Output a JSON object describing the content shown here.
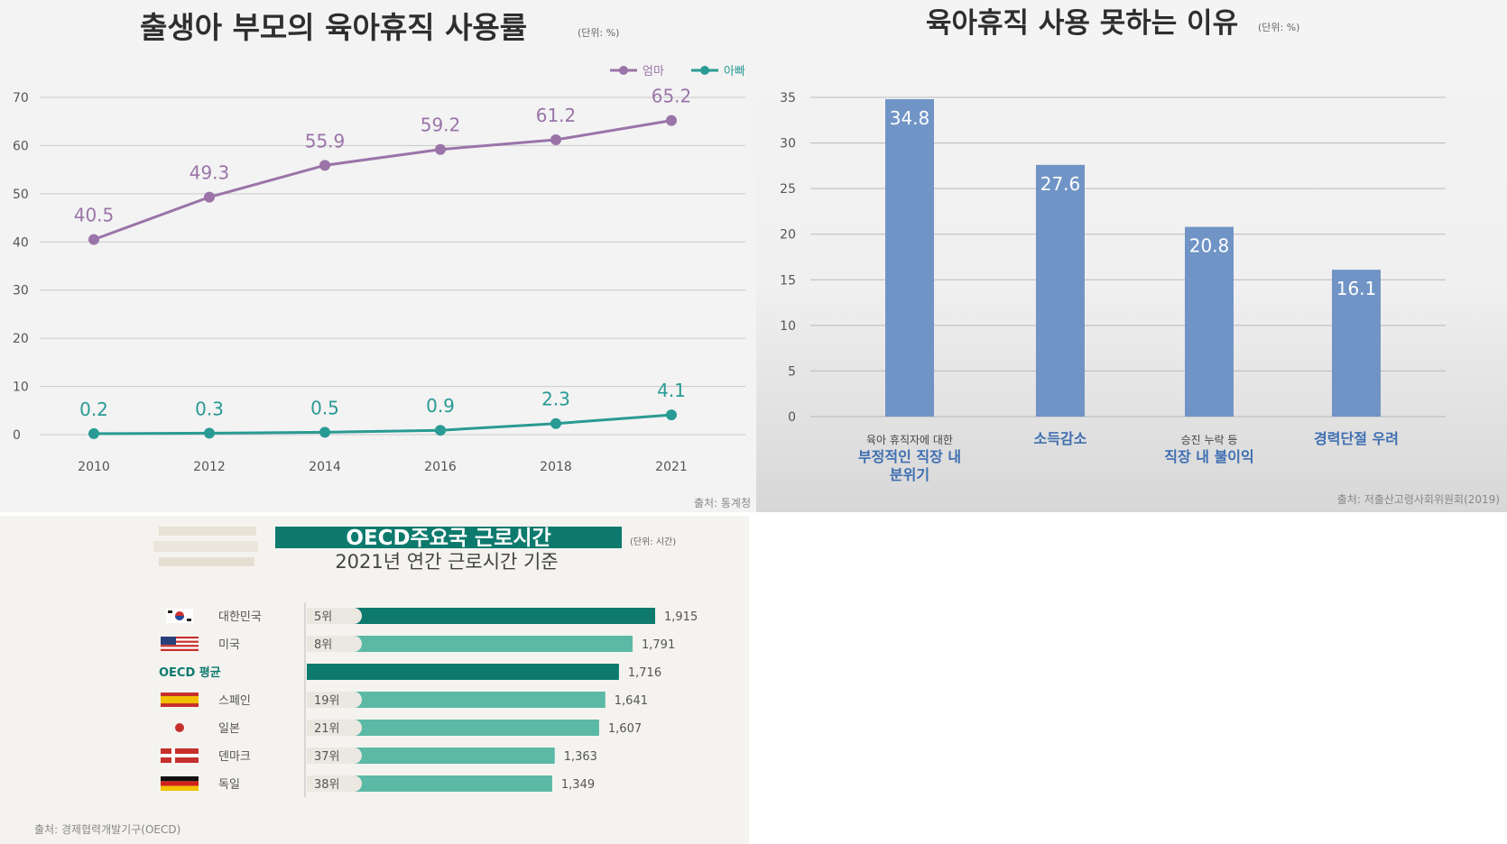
{
  "charts": [
    {
      "id": "line",
      "chart_data": {
        "type": "line",
        "title": "출생아 부모의 육아휴직 사용률",
        "unit": "(단위: %)",
        "x": [
          "2010",
          "2012",
          "2014",
          "2016",
          "2018",
          "2021"
        ],
        "ylim": [
          0,
          70
        ],
        "yticks": [
          "0",
          "10",
          "20",
          "30",
          "40",
          "50",
          "60",
          "70"
        ],
        "series": [
          {
            "name": "엄마",
            "color": "#9a74a8",
            "values": [
              40.5,
              49.3,
              55.9,
              59.2,
              61.2,
              65.2
            ],
            "labels": [
              "40.5",
              "49.3",
              "55.9",
              "59.2",
              "61.2",
              "65.2"
            ]
          },
          {
            "name": "아빠",
            "color": "#2a9a94",
            "values": [
              0.2,
              0.3,
              0.5,
              0.9,
              2.3,
              4.1
            ],
            "labels": [
              "0.2",
              "0.3",
              "0.5",
              "0.9",
              "2.3",
              "4.1"
            ]
          }
        ],
        "grid": true,
        "legend": "top-right",
        "source": "출처: 통계청"
      }
    },
    {
      "id": "bar",
      "chart_data": {
        "type": "bar",
        "title": "육아휴직 사용 못하는 이유",
        "unit": "(단위: %)",
        "categories": [
          {
            "lines": [
              "육아 휴직자에 대한",
              "부정적인 직장 내",
              "분위기"
            ]
          },
          {
            "lines": [
              "소득감소"
            ]
          },
          {
            "lines": [
              "승진 누락 등",
              "직장 내 불이익"
            ]
          },
          {
            "lines": [
              "경력단절 우려"
            ]
          }
        ],
        "values": [
          34.8,
          27.6,
          20.8,
          16.1
        ],
        "labels": [
          "34.8",
          "27.6",
          "20.8",
          "16.1"
        ],
        "ylim": [
          0,
          35
        ],
        "yticks": [
          "0",
          "5",
          "10",
          "15",
          "20",
          "25",
          "30",
          "35"
        ],
        "color": "#7094c6",
        "grid": true,
        "source": "출처: 저출산고령사회위원회(2019)"
      }
    },
    {
      "id": "hbar",
      "chart_data": {
        "type": "bar",
        "orientation": "horizontal",
        "title": "OECD주요국 근로시간",
        "subtitle": "2021년 연간 근로시간 기준",
        "unit": "(단위: 시간)",
        "rows": [
          {
            "country": "대한민국",
            "rank": "5위",
            "value": 1915,
            "label": "1,915",
            "flag": "korea",
            "highlight": true
          },
          {
            "country": "미국",
            "rank": "8위",
            "value": 1791,
            "label": "1,791",
            "flag": "usa",
            "highlight": false
          },
          {
            "country": "OECD 평균",
            "rank": "",
            "value": 1716,
            "label": "1,716",
            "flag": "none",
            "highlight": true
          },
          {
            "country": "스페인",
            "rank": "19위",
            "value": 1641,
            "label": "1,641",
            "flag": "spain",
            "highlight": false
          },
          {
            "country": "일본",
            "rank": "21위",
            "value": 1607,
            "label": "1,607",
            "flag": "japan",
            "highlight": false
          },
          {
            "country": "덴마크",
            "rank": "37위",
            "value": 1363,
            "label": "1,363",
            "flag": "denmark",
            "highlight": false
          },
          {
            "country": "독일",
            "rank": "38위",
            "value": 1349,
            "label": "1,349",
            "flag": "germany",
            "highlight": false
          }
        ],
        "colors": {
          "dark": "#0e7a6e",
          "light": "#5bb9a6"
        },
        "source": "출처: 경제협력개발기구(OECD)"
      }
    }
  ]
}
